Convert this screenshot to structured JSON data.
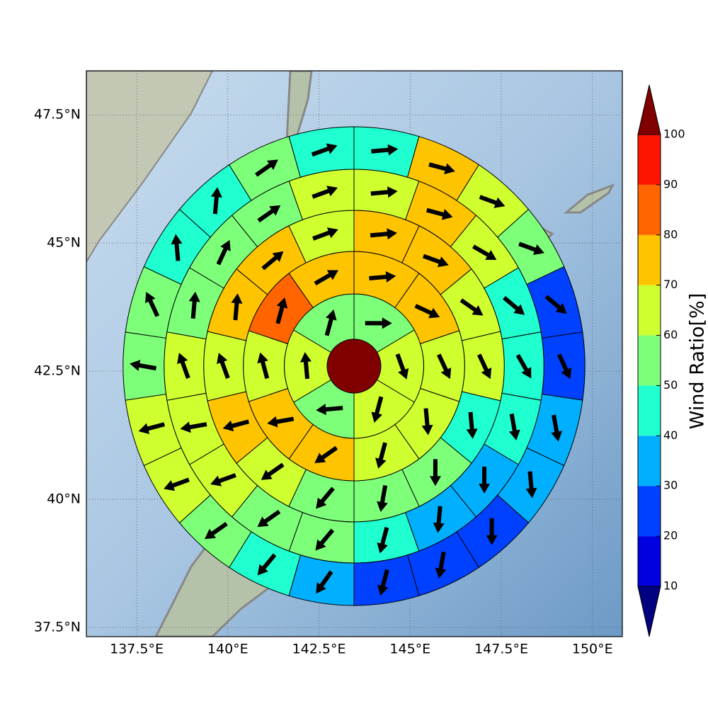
{
  "chart_data": {
    "type": "polar",
    "xlim": [
      136.12,
      150.82
    ],
    "ylim": [
      37.32,
      48.36
    ],
    "xticks": [
      {
        "value": 137.5,
        "label": "137.5°E"
      },
      {
        "value": 140,
        "label": "140°E"
      },
      {
        "value": 142.5,
        "label": "142.5°E"
      },
      {
        "value": 145,
        "label": "145°E"
      },
      {
        "value": 147.5,
        "label": "147.5°E"
      },
      {
        "value": 150,
        "label": "150°E"
      }
    ],
    "yticks": [
      {
        "value": 37.5,
        "label": "37.5°N"
      },
      {
        "value": 40,
        "label": "40°N"
      },
      {
        "value": 42.5,
        "label": "42.5°N"
      },
      {
        "value": 45,
        "label": "45°N"
      },
      {
        "value": 47.5,
        "label": "47.5°N"
      }
    ],
    "grid": true,
    "rings": [
      {
        "values": [
          55,
          65,
          65,
          55,
          65,
          55
        ],
        "directions": [
          90,
          160,
          195,
          265,
          355,
          15
        ]
      },
      {
        "values": [
          75,
          75,
          65,
          65,
          65,
          75,
          75,
          65,
          85,
          75
        ],
        "directions": [
          85,
          115,
          155,
          175,
          195,
          235,
          260,
          345,
          15,
          60
        ]
      },
      {
        "values": [
          75,
          75,
          65,
          65,
          45,
          55,
          55,
          55,
          65,
          75,
          65,
          75,
          75,
          65
        ],
        "directions": [
          85,
          110,
          125,
          155,
          175,
          180,
          190,
          220,
          235,
          255,
          340,
          5,
          50,
          70
        ]
      },
      {
        "values": [
          65,
          75,
          65,
          45,
          45,
          45,
          35,
          35,
          45,
          55,
          55,
          65,
          65,
          65,
          55,
          55,
          55,
          65
        ],
        "directions": [
          85,
          105,
          120,
          130,
          150,
          170,
          180,
          185,
          195,
          220,
          235,
          250,
          260,
          340,
          5,
          25,
          55,
          70
        ]
      },
      {
        "values": [
          45,
          75,
          65,
          55,
          25,
          25,
          35,
          35,
          25,
          25,
          25,
          35,
          45,
          55,
          65,
          65,
          55,
          55,
          45,
          45,
          55,
          45
        ],
        "directions": [
          85,
          105,
          110,
          110,
          130,
          155,
          170,
          175,
          180,
          190,
          195,
          215,
          220,
          235,
          250,
          255,
          280,
          335,
          355,
          5,
          55,
          70
        ]
      }
    ],
    "colorbar": {
      "label": "Wind Ratio[%]",
      "levels": [
        10,
        20,
        30,
        40,
        50,
        60,
        70,
        80,
        90,
        100
      ],
      "colors": [
        "#0000e0",
        "#0040ff",
        "#00b0ff",
        "#20ffd0",
        "#7dff7a",
        "#d0ff30",
        "#ffc400",
        "#ff6400",
        "#ff1400"
      ],
      "under_color": "#000080",
      "over_color": "#800000"
    }
  }
}
